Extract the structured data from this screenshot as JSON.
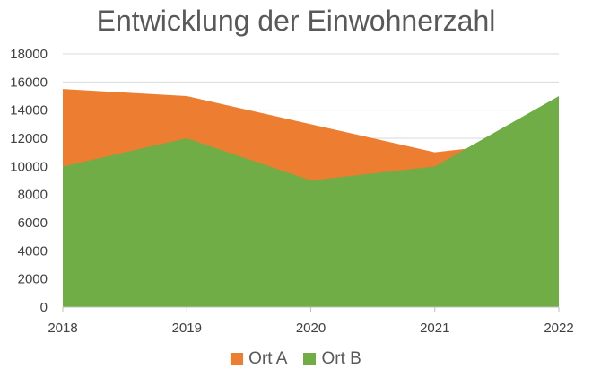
{
  "chart_data": {
    "type": "area",
    "title": "Entwicklung der Einwohnerzahl",
    "xlabel": "",
    "ylabel": "",
    "categories": [
      "2018",
      "2019",
      "2020",
      "2021",
      "2022"
    ],
    "ylim": [
      0,
      18000
    ],
    "yticks": [
      "0",
      "2000",
      "4000",
      "6000",
      "8000",
      "10000",
      "12000",
      "14000",
      "16000",
      "18000"
    ],
    "grid": true,
    "legend_position": "bottom",
    "series": [
      {
        "name": "Ort A",
        "values": [
          15500,
          15000,
          13000,
          11000,
          12000
        ],
        "color": "#ED7D31"
      },
      {
        "name": "Ort B",
        "values": [
          10000,
          12000,
          9000,
          10000,
          15000
        ],
        "color": "#70AD47"
      }
    ]
  }
}
